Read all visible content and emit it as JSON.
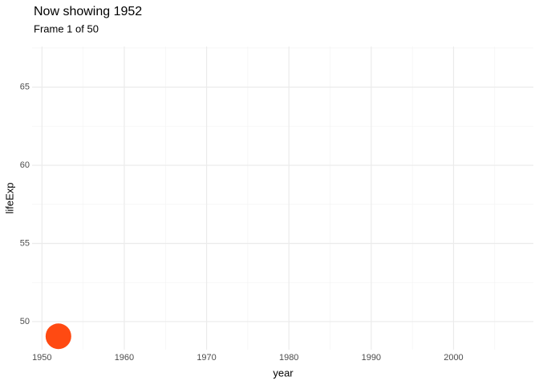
{
  "chart_data": {
    "type": "scatter",
    "title": "Now showing 1952",
    "subtitle": "Frame 1 of 50",
    "x_label": "year",
    "y_label": "lifeExp",
    "series": [
      {
        "color": "#ff4a12",
        "x": [
          1952
        ],
        "values": [
          49.06
        ]
      }
    ],
    "xlim": [
      1948.8,
      2009.7
    ],
    "ylim": [
      48.2,
      67.6
    ],
    "xticks": [
      1950,
      1960,
      1970,
      1980,
      1990,
      2000
    ],
    "yticks": [
      50,
      55,
      60,
      65
    ],
    "x_minor_ticks": [
      1955,
      1965,
      1975,
      1985,
      1995,
      2005
    ],
    "y_minor_ticks": [
      52.5,
      57.5,
      62.5,
      67.5
    ],
    "grid": true
  }
}
